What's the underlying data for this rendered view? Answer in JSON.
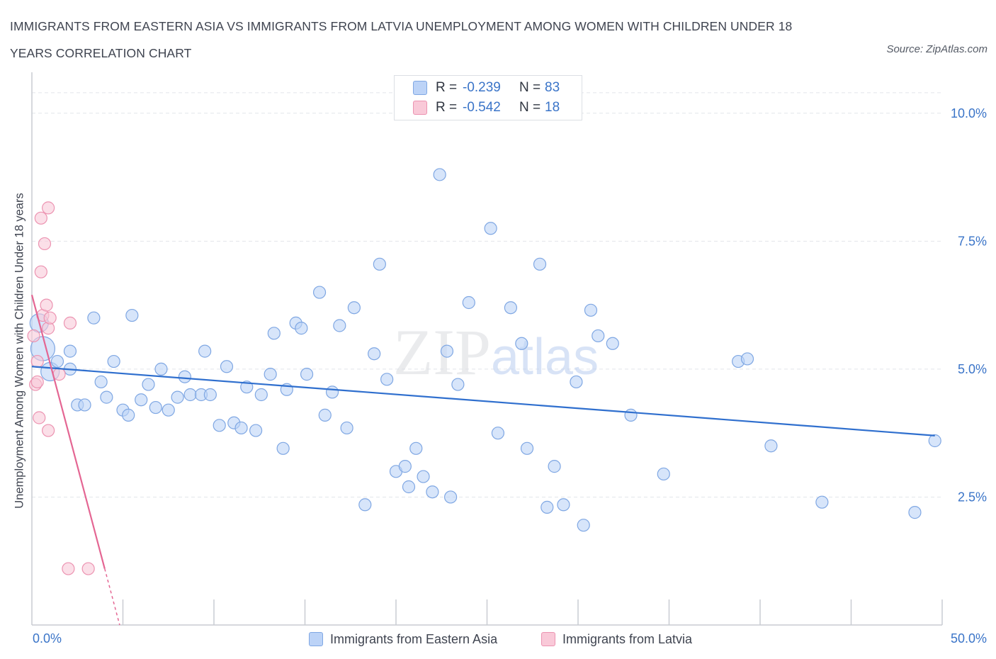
{
  "title_lines": [
    "IMMIGRANTS FROM EASTERN ASIA VS IMMIGRANTS FROM LATVIA UNEMPLOYMENT AMONG WOMEN WITH CHILDREN UNDER 18",
    "YEARS CORRELATION CHART"
  ],
  "source": "Source: ZipAtlas.com",
  "watermark": "ZIPatlas",
  "legend_top": [
    {
      "r_label": "R =",
      "r_value": "-0.239",
      "n_label": "N =",
      "n_value": "83"
    },
    {
      "r_label": "R =",
      "r_value": "-0.542",
      "n_label": "N =",
      "n_value": "18"
    }
  ],
  "legend_bottom": [
    "Immigrants from Eastern Asia",
    "Immigrants from Latvia"
  ],
  "x_tick_left": "0.0%",
  "x_tick_right": "50.0%",
  "colors": {
    "blue_fill": "#bcd3f7",
    "blue_stroke": "#7fa7e3",
    "blue_line": "#2f6fce",
    "pink_fill": "#f9c9d8",
    "pink_stroke": "#ec93b1",
    "pink_line": "#e46693",
    "tick_text": "#3a74c8",
    "grid": "#e2e5ea"
  },
  "chart_data": {
    "type": "scatter",
    "title": "IMMIGRANTS FROM EASTERN ASIA VS IMMIGRANTS FROM LATVIA UNEMPLOYMENT AMONG WOMEN WITH CHILDREN UNDER 18 YEARS CORRELATION CHART",
    "xlabel": "",
    "ylabel": "Unemployment Among Women with Children Under 18 years",
    "xlim": [
      0,
      50
    ],
    "ylim": [
      0,
      10.8
    ],
    "y_ticks": [
      {
        "value": 2.5,
        "label": "2.5%"
      },
      {
        "value": 5.0,
        "label": "5.0%"
      },
      {
        "value": 7.5,
        "label": "7.5%"
      },
      {
        "value": 10.0,
        "label": "10.0%"
      }
    ],
    "x_tick_labels": [
      "0.0%",
      "50.0%"
    ],
    "grid": true,
    "legend_position": "top-center",
    "series": [
      {
        "name": "Immigrants from Eastern Asia",
        "color": "#7fa7e3",
        "trend": {
          "x": [
            0.0,
            49.6
          ],
          "y": [
            5.05,
            3.7
          ]
        },
        "points": [
          [
            0.4,
            5.9
          ],
          [
            0.6,
            5.4
          ],
          [
            1.0,
            4.95
          ],
          [
            1.4,
            5.15
          ],
          [
            2.1,
            5.35
          ],
          [
            2.1,
            5.0
          ],
          [
            2.5,
            4.3
          ],
          [
            2.9,
            4.3
          ],
          [
            3.4,
            6.0
          ],
          [
            3.8,
            4.75
          ],
          [
            4.1,
            4.45
          ],
          [
            4.5,
            5.15
          ],
          [
            5.0,
            4.2
          ],
          [
            5.3,
            4.1
          ],
          [
            5.5,
            6.05
          ],
          [
            6.0,
            4.4
          ],
          [
            6.4,
            4.7
          ],
          [
            6.8,
            4.25
          ],
          [
            7.1,
            5.0
          ],
          [
            7.5,
            4.2
          ],
          [
            8.0,
            4.45
          ],
          [
            8.4,
            4.85
          ],
          [
            8.7,
            4.5
          ],
          [
            9.3,
            4.5
          ],
          [
            9.5,
            5.35
          ],
          [
            9.8,
            4.5
          ],
          [
            10.3,
            3.9
          ],
          [
            10.7,
            5.05
          ],
          [
            11.1,
            3.95
          ],
          [
            11.5,
            3.85
          ],
          [
            11.8,
            4.65
          ],
          [
            12.3,
            3.8
          ],
          [
            12.6,
            4.5
          ],
          [
            13.1,
            4.9
          ],
          [
            13.3,
            5.7
          ],
          [
            13.8,
            3.45
          ],
          [
            14.0,
            4.6
          ],
          [
            14.5,
            5.9
          ],
          [
            14.8,
            5.8
          ],
          [
            15.1,
            4.9
          ],
          [
            15.8,
            6.5
          ],
          [
            16.1,
            4.1
          ],
          [
            16.5,
            4.55
          ],
          [
            16.9,
            5.85
          ],
          [
            17.3,
            3.85
          ],
          [
            17.7,
            6.2
          ],
          [
            18.3,
            2.35
          ],
          [
            18.8,
            5.3
          ],
          [
            19.1,
            7.05
          ],
          [
            19.5,
            4.8
          ],
          [
            20.0,
            3.0
          ],
          [
            20.5,
            3.1
          ],
          [
            20.7,
            2.7
          ],
          [
            21.1,
            3.45
          ],
          [
            21.5,
            2.9
          ],
          [
            22.0,
            2.6
          ],
          [
            22.4,
            8.8
          ],
          [
            22.8,
            5.35
          ],
          [
            23.0,
            2.5
          ],
          [
            23.4,
            4.7
          ],
          [
            24.0,
            6.3
          ],
          [
            25.2,
            7.75
          ],
          [
            25.6,
            3.75
          ],
          [
            26.3,
            6.2
          ],
          [
            26.9,
            5.5
          ],
          [
            27.2,
            3.45
          ],
          [
            27.9,
            7.05
          ],
          [
            28.3,
            2.3
          ],
          [
            28.7,
            3.1
          ],
          [
            29.2,
            2.35
          ],
          [
            29.9,
            4.75
          ],
          [
            30.3,
            1.95
          ],
          [
            30.7,
            6.15
          ],
          [
            31.1,
            5.65
          ],
          [
            31.9,
            5.5
          ],
          [
            32.9,
            4.1
          ],
          [
            34.7,
            2.95
          ],
          [
            38.8,
            5.15
          ],
          [
            39.3,
            5.2
          ],
          [
            40.6,
            3.5
          ],
          [
            43.4,
            2.4
          ],
          [
            48.5,
            2.2
          ],
          [
            49.6,
            3.6
          ]
        ]
      },
      {
        "name": "Immigrants from Latvia",
        "color": "#ec93b1",
        "trend": {
          "x": [
            0.0,
            4.0
          ],
          "y": [
            6.45,
            1.1
          ]
        },
        "points": [
          [
            0.1,
            5.65
          ],
          [
            0.2,
            4.7
          ],
          [
            0.3,
            5.15
          ],
          [
            0.3,
            4.75
          ],
          [
            0.4,
            4.05
          ],
          [
            0.5,
            7.95
          ],
          [
            0.5,
            6.9
          ],
          [
            0.6,
            6.05
          ],
          [
            0.7,
            7.45
          ],
          [
            0.8,
            6.25
          ],
          [
            0.9,
            5.8
          ],
          [
            0.9,
            3.8
          ],
          [
            0.9,
            8.15
          ],
          [
            1.0,
            6.0
          ],
          [
            1.5,
            4.9
          ],
          [
            2.1,
            5.9
          ],
          [
            2.0,
            1.1
          ],
          [
            3.1,
            1.1
          ]
        ]
      }
    ]
  }
}
